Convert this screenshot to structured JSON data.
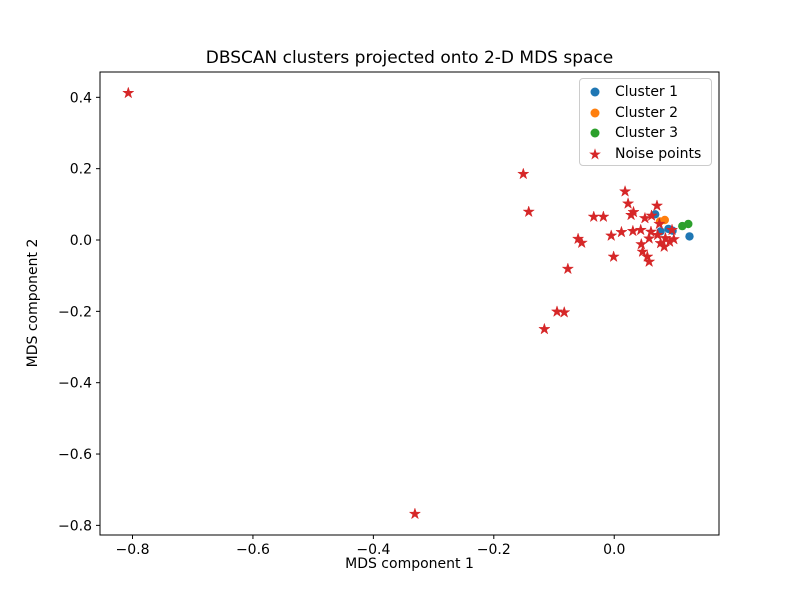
{
  "figure": {
    "title": "DBSCAN clusters projected onto 2-D MDS space",
    "xlabel": "MDS component 1",
    "ylabel": "MDS component 2"
  },
  "chart_data": {
    "type": "scatter",
    "title": "DBSCAN clusters projected onto 2-D MDS space",
    "xlabel": "MDS component 1",
    "ylabel": "MDS component 2",
    "xlim": [
      -0.854,
      0.174
    ],
    "ylim": [
      -0.827,
      0.471
    ],
    "grid": false,
    "legend_position": "upper right",
    "xticks": {
      "values": [
        -0.8,
        -0.6,
        -0.4,
        -0.2,
        0.0
      ],
      "labels": [
        "−0.8",
        "−0.6",
        "−0.4",
        "−0.2",
        "0.0"
      ]
    },
    "yticks": {
      "values": [
        0.4,
        0.2,
        0.0,
        -0.2,
        -0.4,
        -0.6,
        -0.8
      ],
      "labels": [
        "0.4",
        "0.2",
        "0.0",
        "−0.2",
        "−0.4",
        "−0.6",
        "−0.8"
      ]
    },
    "series": [
      {
        "name": "Cluster 1",
        "marker": "circle",
        "color": "#1f77b4",
        "points": [
          [
            0.068,
            0.072
          ],
          [
            0.077,
            0.024
          ],
          [
            0.09,
            0.031
          ],
          [
            0.097,
            0.026
          ],
          [
            0.125,
            0.01
          ]
        ]
      },
      {
        "name": "Cluster 2",
        "marker": "circle",
        "color": "#ff7f0e",
        "points": [
          [
            0.076,
            0.052
          ],
          [
            0.084,
            0.056
          ]
        ]
      },
      {
        "name": "Cluster 3",
        "marker": "circle",
        "color": "#2ca02c",
        "points": [
          [
            0.113,
            0.039
          ],
          [
            0.123,
            0.045
          ]
        ]
      },
      {
        "name": "Noise points",
        "marker": "star",
        "color": "#d62728",
        "points": [
          [
            -0.807,
            0.412
          ],
          [
            -0.331,
            -0.768
          ],
          [
            -0.151,
            0.185
          ],
          [
            -0.142,
            0.079
          ],
          [
            -0.116,
            -0.25
          ],
          [
            -0.095,
            -0.201
          ],
          [
            -0.083,
            -0.203
          ],
          [
            -0.077,
            -0.081
          ],
          [
            -0.06,
            0.003
          ],
          [
            -0.054,
            -0.008
          ],
          [
            -0.034,
            0.065
          ],
          [
            -0.018,
            0.065
          ],
          [
            -0.005,
            0.012
          ],
          [
            -0.001,
            -0.047
          ],
          [
            0.012,
            0.022
          ],
          [
            0.018,
            0.136
          ],
          [
            0.023,
            0.102
          ],
          [
            0.028,
            0.07
          ],
          [
            0.031,
            0.025
          ],
          [
            0.032,
            0.078
          ],
          [
            0.044,
            0.028
          ],
          [
            0.045,
            -0.012
          ],
          [
            0.047,
            -0.033
          ],
          [
            0.051,
            0.061
          ],
          [
            0.055,
            -0.047
          ],
          [
            0.058,
            0.004
          ],
          [
            0.058,
            -0.061
          ],
          [
            0.061,
            0.023
          ],
          [
            0.062,
            0.068
          ],
          [
            0.071,
            0.096
          ],
          [
            0.072,
            0.014
          ],
          [
            0.075,
            0.045
          ],
          [
            0.077,
            -0.009
          ],
          [
            0.083,
            -0.019
          ],
          [
            0.085,
            0.005
          ],
          [
            0.092,
            -0.005
          ],
          [
            0.096,
            0.028
          ],
          [
            0.099,
            0.002
          ]
        ]
      }
    ]
  }
}
